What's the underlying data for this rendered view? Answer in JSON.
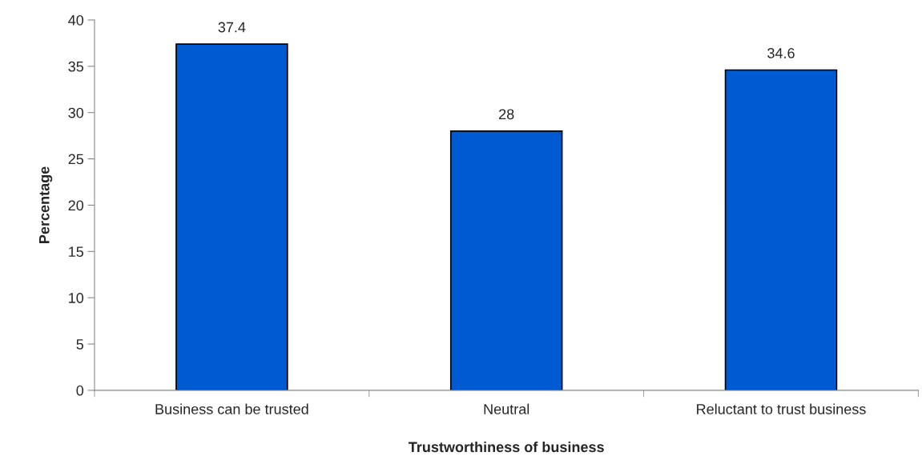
{
  "chart_data": {
    "type": "bar",
    "xlabel": "Trustworthiness of business",
    "ylabel": "Percentage",
    "categories": [
      "Business can be trusted",
      "Neutral",
      "Reluctant to trust business"
    ],
    "values": [
      37.4,
      28,
      34.6
    ],
    "color": "#005ad2",
    "ylim": [
      0,
      40
    ],
    "yticks": [
      0,
      5,
      10,
      15,
      20,
      25,
      30,
      35,
      40
    ],
    "data_labels": true,
    "grid": false,
    "legend": false
  }
}
